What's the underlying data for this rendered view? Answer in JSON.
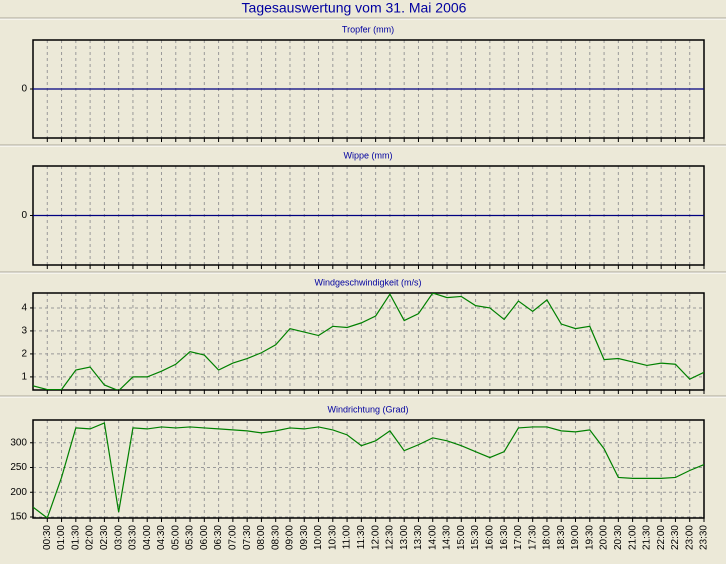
{
  "title": "Tagesauswertung vom 31. Mai 2006",
  "chart_data": [
    {
      "type": "line",
      "title": "Tropfer (mm)",
      "ylim": [
        -1,
        1
      ],
      "yticks": [
        0
      ],
      "grid": true,
      "series": [
        {
          "color": "#000080",
          "values": [
            0,
            0,
            0,
            0,
            0,
            0,
            0,
            0,
            0,
            0,
            0,
            0,
            0,
            0,
            0,
            0,
            0,
            0,
            0,
            0,
            0,
            0,
            0,
            0,
            0,
            0,
            0,
            0,
            0,
            0,
            0,
            0,
            0,
            0,
            0,
            0,
            0,
            0,
            0,
            0,
            0,
            0,
            0,
            0,
            0,
            0,
            0,
            0
          ]
        }
      ]
    },
    {
      "type": "line",
      "title": "Wippe (mm)",
      "ylim": [
        -1,
        1
      ],
      "yticks": [
        0
      ],
      "grid": true,
      "series": [
        {
          "color": "#000080",
          "values": [
            0,
            0,
            0,
            0,
            0,
            0,
            0,
            0,
            0,
            0,
            0,
            0,
            0,
            0,
            0,
            0,
            0,
            0,
            0,
            0,
            0,
            0,
            0,
            0,
            0,
            0,
            0,
            0,
            0,
            0,
            0,
            0,
            0,
            0,
            0,
            0,
            0,
            0,
            0,
            0,
            0,
            0,
            0,
            0,
            0,
            0,
            0,
            0
          ]
        }
      ]
    },
    {
      "type": "line",
      "title": "Windgeschwindigkeit (m/s)",
      "ylim": [
        0.43,
        4.65
      ],
      "yticks": [
        1,
        2,
        3,
        4
      ],
      "grid": true,
      "series": [
        {
          "color": "#008000",
          "values": [
            0.61,
            0.45,
            0.45,
            1.3,
            1.43,
            0.65,
            0.4,
            1.0,
            1.0,
            1.25,
            1.55,
            2.1,
            1.95,
            1.3,
            1.6,
            1.8,
            2.05,
            2.4,
            3.1,
            2.95,
            2.8,
            3.2,
            3.15,
            3.35,
            3.65,
            4.6,
            3.45,
            3.75,
            4.65,
            4.45,
            4.5,
            4.1,
            4.0,
            3.5,
            4.3,
            3.85,
            4.35,
            3.3,
            3.1,
            3.2,
            1.75,
            1.8,
            1.65,
            1.5,
            1.6,
            1.55,
            0.9,
            1.2
          ]
        }
      ]
    },
    {
      "type": "line",
      "title": "Windrichtung (Grad)",
      "ylim": [
        148,
        346
      ],
      "yticks": [
        150,
        200,
        250,
        300
      ],
      "grid": true,
      "categories": [
        null,
        "00:30",
        "01:00",
        "01:30",
        "02:00",
        "02:30",
        "03:00",
        "03:30",
        "04:00",
        "04:30",
        "05:00",
        "05:30",
        "06:00",
        "06:30",
        "07:00",
        "07:30",
        "08:00",
        "08:30",
        "09:00",
        "09:30",
        "10:00",
        "10:30",
        "11:00",
        "11:30",
        "12:00",
        "12:30",
        "13:00",
        "13:30",
        "14:00",
        "14:30",
        "15:00",
        "15:30",
        "16:00",
        "16:30",
        "17:00",
        "17:30",
        "18:00",
        "18:30",
        "19:00",
        "19:30",
        "20:00",
        "20:30",
        "21:00",
        "21:30",
        "22:00",
        "22:30",
        "23:00",
        "23:30"
      ],
      "series": [
        {
          "color": "#008000",
          "values": [
            170,
            148,
            230,
            330,
            328,
            340,
            160,
            330,
            328,
            332,
            330,
            332,
            330,
            328,
            326,
            324,
            320,
            324,
            330,
            328,
            332,
            326,
            316,
            294,
            304,
            324,
            284,
            296,
            310,
            304,
            294,
            282,
            270,
            282,
            330,
            332,
            332,
            324,
            322,
            326,
            288,
            230,
            228,
            228,
            228,
            230,
            244,
            256
          ]
        }
      ]
    }
  ]
}
